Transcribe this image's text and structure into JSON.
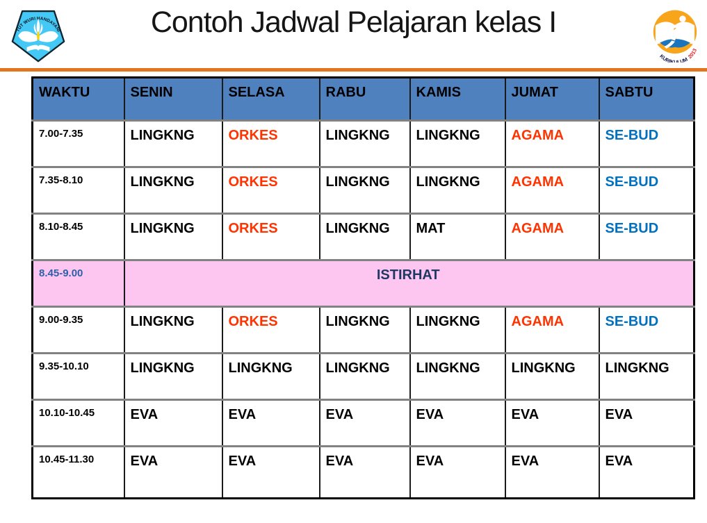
{
  "slide": {
    "title": "Contoh Jadwal Pelajaran kelas I"
  },
  "logos": {
    "left": {
      "label": "TUT WURI HANDAYANI"
    },
    "right": {
      "label_main": "KURIKULUM",
      "label_year": "2013"
    }
  },
  "colors": {
    "header_bg": "#4E81BD",
    "break_bg": "#FCC6F0",
    "subject_red": "#FF3300",
    "subject_blue": "#0070C0",
    "break_time_blue": "#2E5FA8",
    "break_label_navy": "#203864",
    "rule_orange": "#E2751D"
  },
  "table": {
    "columns": [
      "WAKTU",
      "SENIN",
      "SELASA",
      "RABU",
      "KAMIS",
      "JUMAT",
      "SABTU"
    ],
    "rows": [
      {
        "time": "7.00-7.35",
        "cells": [
          {
            "text": "LINGKNG",
            "color": "default"
          },
          {
            "text": "ORKES",
            "color": "red"
          },
          {
            "text": "LINGKNG",
            "color": "default"
          },
          {
            "text": "LINGKNG",
            "color": "default"
          },
          {
            "text": "AGAMA",
            "color": "red"
          },
          {
            "text": "SE-BUD",
            "color": "blue"
          }
        ]
      },
      {
        "time": "7.35-8.10",
        "cells": [
          {
            "text": "LINGKNG",
            "color": "default"
          },
          {
            "text": "ORKES",
            "color": "red"
          },
          {
            "text": "LINGKNG",
            "color": "default"
          },
          {
            "text": "LINGKNG",
            "color": "default"
          },
          {
            "text": "AGAMA",
            "color": "red"
          },
          {
            "text": "SE-BUD",
            "color": "blue"
          }
        ]
      },
      {
        "time": "8.10-8.45",
        "cells": [
          {
            "text": "LINGKNG",
            "color": "default"
          },
          {
            "text": "ORKES",
            "color": "red"
          },
          {
            "text": "LINGKNG",
            "color": "default"
          },
          {
            "text": "MAT",
            "color": "default"
          },
          {
            "text": "AGAMA",
            "color": "red"
          },
          {
            "text": "SE-BUD",
            "color": "blue"
          }
        ]
      },
      {
        "time": "8.45-9.00",
        "break": true,
        "label": "ISTIRHAT"
      },
      {
        "time": "9.00-9.35",
        "cells": [
          {
            "text": "LINGKNG",
            "color": "default"
          },
          {
            "text": "ORKES",
            "color": "red"
          },
          {
            "text": "LINGKNG",
            "color": "default"
          },
          {
            "text": "LINGKNG",
            "color": "default"
          },
          {
            "text": "AGAMA",
            "color": "red"
          },
          {
            "text": "SE-BUD",
            "color": "blue"
          }
        ]
      },
      {
        "time": "9.35-10.10",
        "cells": [
          {
            "text": "LINGKNG",
            "color": "default"
          },
          {
            "text": "LINGKNG",
            "color": "default"
          },
          {
            "text": "LINGKNG",
            "color": "default"
          },
          {
            "text": "LINGKNG",
            "color": "default"
          },
          {
            "text": "LINGKNG",
            "color": "default"
          },
          {
            "text": "LINGKNG",
            "color": "default"
          }
        ]
      },
      {
        "time": "10.10-10.45",
        "cells": [
          {
            "text": "EVA",
            "color": "default"
          },
          {
            "text": "EVA",
            "color": "default"
          },
          {
            "text": "EVA",
            "color": "default"
          },
          {
            "text": "EVA",
            "color": "default"
          },
          {
            "text": "EVA",
            "color": "default"
          },
          {
            "text": "EVA",
            "color": "default"
          }
        ]
      },
      {
        "time": "10.45-11.30",
        "cells": [
          {
            "text": "EVA",
            "color": "default"
          },
          {
            "text": "EVA",
            "color": "default"
          },
          {
            "text": "EVA",
            "color": "default"
          },
          {
            "text": "EVA",
            "color": "default"
          },
          {
            "text": "EVA",
            "color": "default"
          },
          {
            "text": "EVA",
            "color": "default"
          }
        ]
      }
    ]
  }
}
